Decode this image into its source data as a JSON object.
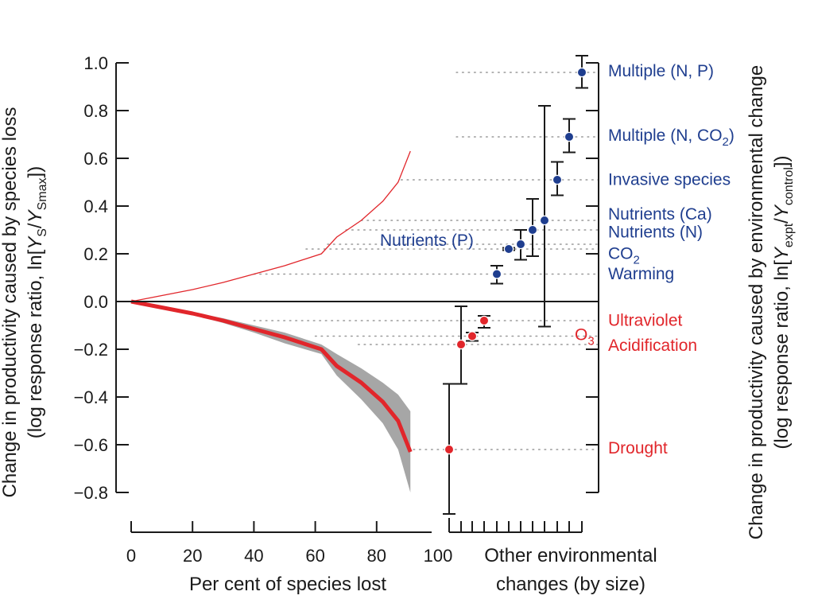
{
  "chart_data": {
    "type": "line+errorbar",
    "left_axis": {
      "label_parts": [
        "Change in productivity caused by species loss",
        "(log response ratio, ln[",
        "Y",
        "S",
        "/",
        "Y",
        "Smax",
        "])"
      ],
      "ylim": [
        -0.9,
        1.05
      ],
      "ticks": [
        1.0,
        0.8,
        0.6,
        0.4,
        0.2,
        0.0,
        -0.2,
        -0.4,
        -0.6,
        -0.8
      ],
      "tick_labels": [
        "1.0",
        "0.8",
        "0.6",
        "0.4",
        "0.2",
        "0.0",
        "−0.2",
        "−0.4",
        "−0.6",
        "−0.8"
      ]
    },
    "right_axis": {
      "label_parts": [
        "Change in productivity caused by environmental change",
        "(log response ratio, ln[",
        "Y",
        "expt",
        "/",
        "Y",
        "control",
        "])"
      ]
    },
    "x_axis": {
      "label": "Per cent of species lost",
      "xlim": [
        0,
        100
      ],
      "ticks": [
        0,
        20,
        40,
        60,
        80,
        100
      ],
      "tick_labels": [
        "0",
        "20",
        "40",
        "60",
        "80",
        "100"
      ]
    },
    "x_axis_right": {
      "label_lines": [
        "Other environmental",
        "changes (by size)"
      ],
      "tick_count": 12
    },
    "species_loss_series": [
      {
        "name": "upper",
        "color": "#e1262b",
        "x": [
          0,
          10,
          20,
          30,
          40,
          50,
          62,
          67,
          75,
          82,
          87,
          91
        ],
        "y": [
          0.0,
          0.025,
          0.05,
          0.08,
          0.115,
          0.15,
          0.2,
          0.27,
          0.34,
          0.42,
          0.5,
          0.63
        ]
      },
      {
        "name": "lower",
        "color": "#e1262b",
        "x": [
          0,
          10,
          20,
          30,
          40,
          50,
          62,
          67,
          75,
          82,
          87,
          91
        ],
        "y": [
          0.0,
          -0.025,
          -0.05,
          -0.08,
          -0.115,
          -0.15,
          -0.2,
          -0.27,
          -0.34,
          -0.42,
          -0.5,
          -0.63
        ],
        "band_upper": [
          0.0,
          -0.02,
          -0.045,
          -0.07,
          -0.1,
          -0.13,
          -0.18,
          -0.22,
          -0.28,
          -0.34,
          -0.39,
          -0.46
        ],
        "band_lower": [
          0.0,
          -0.03,
          -0.055,
          -0.09,
          -0.13,
          -0.175,
          -0.22,
          -0.31,
          -0.41,
          -0.51,
          -0.62,
          -0.8
        ],
        "band_color": "#a6a6a6"
      }
    ],
    "environmental_changes": [
      {
        "name": "Drought",
        "value": -0.62,
        "ci": [
          -0.89,
          -0.345
        ],
        "color": "#e1262b",
        "guide_from_x": 92
      },
      {
        "name": "Acidification",
        "value": -0.18,
        "ci": [
          -0.345,
          -0.02
        ],
        "color": "#e1262b",
        "guide_from_x": 74
      },
      {
        "name": "O3",
        "value": -0.145,
        "ci": [
          -0.165,
          -0.13
        ],
        "color": "#e1262b",
        "guide_from_x": 60
      },
      {
        "name": "Ultraviolet",
        "value": -0.08,
        "ci": [
          -0.11,
          -0.06
        ],
        "color": "#e1262b",
        "guide_from_x": 40
      },
      {
        "name": "Warming",
        "value": 0.115,
        "ci": [
          0.075,
          0.15
        ],
        "color": "#1f3e8f",
        "guide_from_x": 40
      },
      {
        "name": "Nutrients (P)",
        "value": 0.22,
        "ci": [
          0.215,
          0.225
        ],
        "color": "#1f3e8f",
        "guide_from_x": 57
      },
      {
        "name": "CO2",
        "value": 0.24,
        "ci": [
          0.175,
          0.3
        ],
        "color": "#1f3e8f",
        "guide_from_x": 64
      },
      {
        "name": "Nutrients (N)",
        "value": 0.3,
        "ci": [
          0.19,
          0.43
        ],
        "color": "#1f3e8f",
        "guide_from_x": 70
      },
      {
        "name": "Nutrients (Ca)",
        "value": 0.34,
        "ci": [
          -0.105,
          0.82
        ],
        "color": "#1f3e8f",
        "guide_from_x": 75
      },
      {
        "name": "Invasive species",
        "value": 0.51,
        "ci": [
          0.445,
          0.585
        ],
        "color": "#1f3e8f",
        "guide_from_x": 88
      },
      {
        "name": "Multiple (N, CO2)",
        "value": 0.69,
        "ci": [
          0.625,
          0.765
        ],
        "color": "#1f3e8f",
        "guide_from_x": 106
      },
      {
        "name": "Multiple (N, P)",
        "value": 0.96,
        "ci": [
          0.895,
          1.03
        ],
        "color": "#1f3e8f",
        "guide_from_x": 106
      }
    ],
    "labels": [
      {
        "text": "Multiple (N, P)",
        "color": "#1f3e8f",
        "y": 0.97
      },
      {
        "parts": [
          "Multiple (N, CO",
          "2",
          ")"
        ],
        "color": "#1f3e8f",
        "y": 0.7
      },
      {
        "text": "Invasive species",
        "color": "#1f3e8f",
        "y": 0.515
      },
      {
        "text": "Nutrients (Ca)",
        "color": "#1f3e8f",
        "y": 0.37
      },
      {
        "text": "Nutrients (N)",
        "color": "#1f3e8f",
        "y": 0.295
      },
      {
        "parts": [
          "CO",
          "2",
          ""
        ],
        "color": "#1f3e8f",
        "y": 0.205
      },
      {
        "text": "Warming",
        "color": "#1f3e8f",
        "y": 0.12
      },
      {
        "text": "Nutrients (P)",
        "color": "#1f3e8f",
        "y": 0.26,
        "side": "left"
      },
      {
        "text": "Ultraviolet",
        "color": "#e1262b",
        "y": -0.075
      },
      {
        "parts": [
          "O",
          "3",
          ""
        ],
        "color": "#e1262b",
        "y": -0.135,
        "side": "mid"
      },
      {
        "text": "Acidification",
        "color": "#e1262b",
        "y": -0.18
      },
      {
        "text": "Drought",
        "color": "#e1262b",
        "y": -0.61
      }
    ]
  }
}
